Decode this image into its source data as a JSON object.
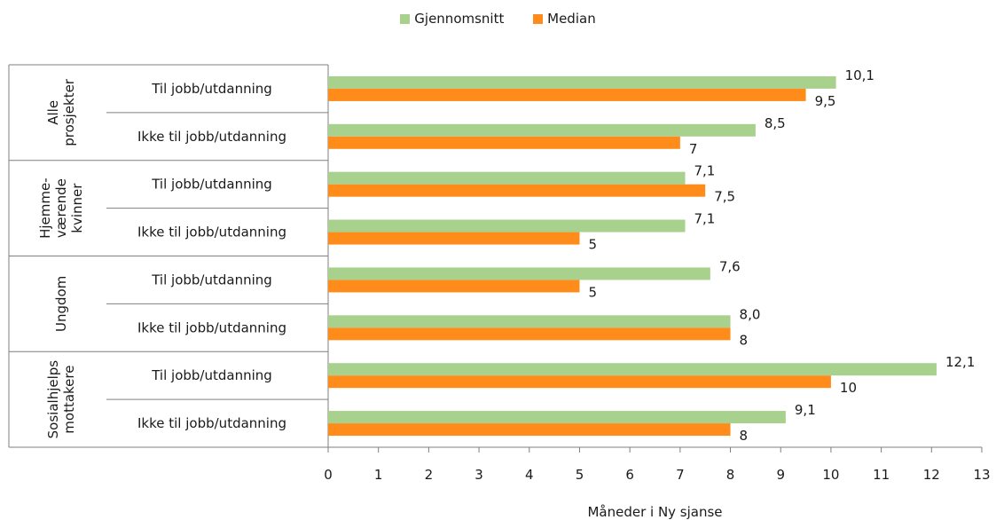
{
  "chart_data": {
    "type": "bar",
    "orientation": "horizontal",
    "xlabel": "Måneder i Ny sjanse",
    "xlim": [
      0,
      13
    ],
    "xticks": [
      "0",
      "1",
      "2",
      "3",
      "4",
      "5",
      "6",
      "7",
      "8",
      "9",
      "10",
      "11",
      "12",
      "13"
    ],
    "legend_position": "top-center",
    "series": [
      {
        "name": "Gjennomsnitt",
        "color": "#a9d18e",
        "values": [
          10.1,
          8.5,
          7.1,
          7.1,
          7.6,
          8.0,
          12.1,
          9.1
        ],
        "labels": [
          "10,1",
          "8,5",
          "7,1",
          "7,1",
          "7,6",
          "8,0",
          "12,1",
          "9,1"
        ]
      },
      {
        "name": "Median",
        "color": "#ff8c1a",
        "values": [
          9.5,
          7,
          7.5,
          5,
          5,
          8,
          10,
          8
        ],
        "labels": [
          "9,5",
          "7",
          "7,5",
          "5",
          "5",
          "8",
          "10",
          "8"
        ]
      }
    ],
    "groups": [
      {
        "lines": [
          "Alle",
          "prosjekter"
        ],
        "categories": [
          "Til jobb/utdanning",
          "Ikke til jobb/utdanning"
        ]
      },
      {
        "lines": [
          "Hjemme-",
          "værende",
          "kvinner"
        ],
        "categories": [
          "Til jobb/utdanning",
          "Ikke til jobb/utdanning"
        ]
      },
      {
        "lines": [
          "Ungdom"
        ],
        "categories": [
          "Til jobb/utdanning",
          "Ikke til jobb/utdanning"
        ]
      },
      {
        "lines": [
          "Sosialhjelps",
          "mottakere"
        ],
        "categories": [
          "Til jobb/utdanning",
          "Ikke til jobb/utdanning"
        ]
      }
    ]
  }
}
